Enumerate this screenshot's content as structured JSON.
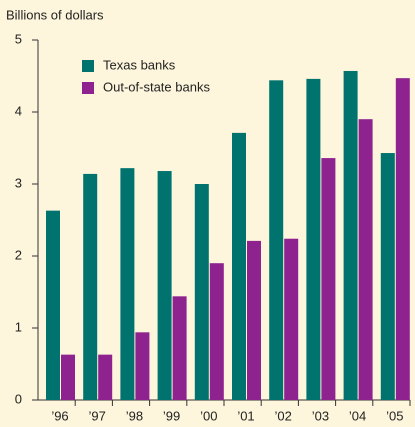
{
  "chart_data": {
    "type": "bar",
    "title": "Billions of dollars",
    "categories": [
      "’96",
      "’97",
      "’98",
      "’99",
      "’00",
      "’01",
      "’02",
      "’03",
      "’04",
      "’05"
    ],
    "series": [
      {
        "name": "Texas banks",
        "color": "#00736e",
        "values": [
          2.63,
          3.14,
          3.22,
          3.18,
          3.0,
          3.71,
          4.44,
          4.46,
          4.57,
          3.43
        ]
      },
      {
        "name": "Out-of-state banks",
        "color": "#8e2390",
        "values": [
          0.63,
          0.63,
          0.94,
          1.44,
          1.9,
          2.21,
          2.24,
          3.36,
          3.9,
          4.47
        ]
      }
    ],
    "ylim": [
      0,
      5
    ],
    "yticks": [
      0,
      1,
      2,
      3,
      4,
      5
    ],
    "legend": "upper-left"
  }
}
